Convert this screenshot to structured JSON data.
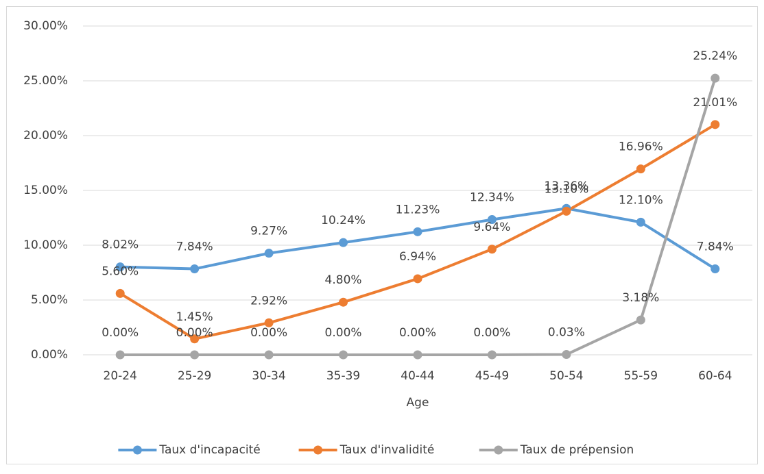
{
  "chart_data": {
    "type": "line",
    "x_label": "Age",
    "categories": [
      "20-24",
      "25-29",
      "30-34",
      "35-39",
      "40-44",
      "45-49",
      "50-54",
      "55-59",
      "60-64"
    ],
    "series": [
      {
        "name": "Taux d'incapacité",
        "color": "#5b9bd5",
        "values": [
          8.02,
          7.84,
          9.27,
          10.24,
          11.23,
          12.34,
          13.36,
          12.1,
          7.84
        ],
        "value_labels": [
          "8.02%",
          "7.84%",
          "9.27%",
          "10.24%",
          "11.23%",
          "12.34%",
          "13.36%",
          "12.10%",
          "7.84%"
        ]
      },
      {
        "name": "Taux d'invalidité",
        "color": "#ed7d31",
        "values": [
          5.6,
          1.45,
          2.92,
          4.8,
          6.94,
          9.64,
          13.1,
          16.96,
          21.01
        ],
        "value_labels": [
          "5.60%",
          "1.45%",
          "2.92%",
          "4.80%",
          "6.94%",
          "9.64%",
          "13.10%",
          "16.96%",
          "21.01%"
        ]
      },
      {
        "name": "Taux de prépension",
        "color": "#a5a5a5",
        "values": [
          0.0,
          0.0,
          0.0,
          0.0,
          0.0,
          0.0,
          0.03,
          3.18,
          25.24
        ],
        "value_labels": [
          "0.00%",
          "0.00%",
          "0.00%",
          "0.00%",
          "0.00%",
          "0.00%",
          "0.03%",
          "3.18%",
          "25.24%"
        ]
      }
    ],
    "ylim": [
      0,
      30
    ],
    "yticks": [
      {
        "value": 0,
        "label": "0.00%"
      },
      {
        "value": 5,
        "label": "5.00%"
      },
      {
        "value": 10,
        "label": "10.00%"
      },
      {
        "value": 15,
        "label": "15.00%"
      },
      {
        "value": 20,
        "label": "20.00%"
      },
      {
        "value": 25,
        "label": "25.00%"
      },
      {
        "value": 30,
        "label": "30.00%"
      }
    ],
    "grid": true,
    "legend": "bottom"
  }
}
